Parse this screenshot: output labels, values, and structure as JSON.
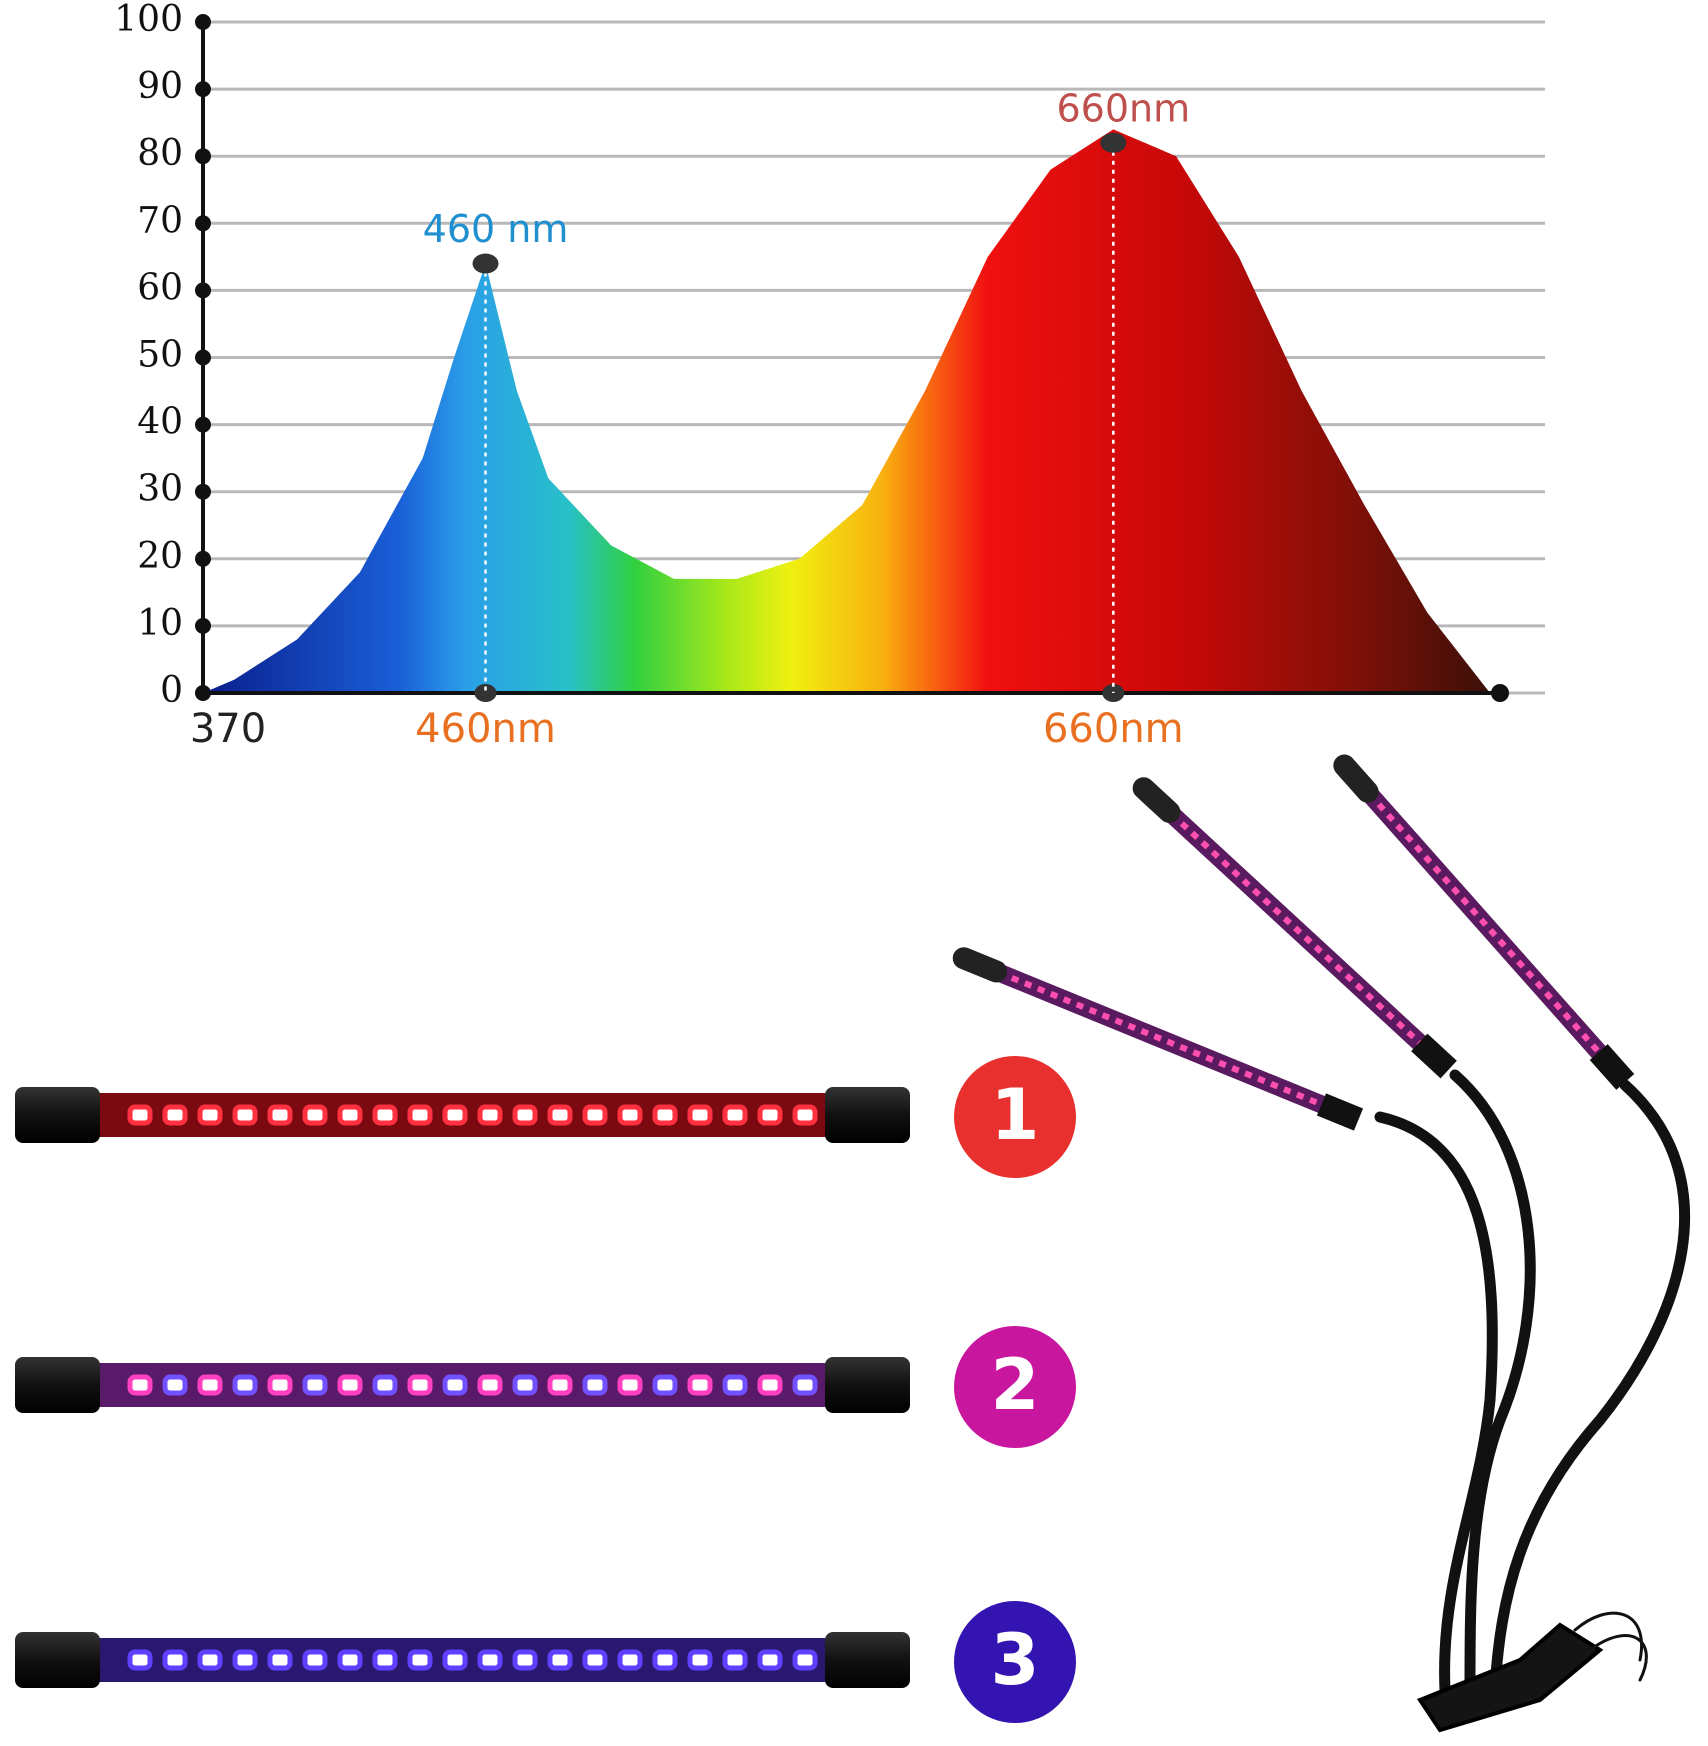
{
  "chart_data": {
    "type": "area",
    "x": [
      370,
      380,
      400,
      420,
      440,
      450,
      460,
      470,
      480,
      500,
      520,
      540,
      560,
      580,
      600,
      620,
      640,
      660,
      680,
      700,
      720,
      740,
      760,
      780
    ],
    "values": [
      0,
      2,
      8,
      18,
      35,
      50,
      64,
      45,
      32,
      22,
      17,
      17,
      20,
      28,
      45,
      65,
      78,
      84,
      80,
      65,
      45,
      28,
      12,
      0
    ],
    "xlim": [
      370,
      780
    ],
    "ylim": [
      0,
      100
    ],
    "yticks": [
      0,
      10,
      20,
      30,
      40,
      50,
      60,
      70,
      80,
      90,
      100
    ],
    "xticks": [
      370,
      {
        "value": 460,
        "label": "460nm"
      },
      {
        "value": 660,
        "label": "660nm"
      }
    ],
    "grid": true,
    "annotations": [
      {
        "text": "460 nm",
        "x": 460,
        "y": 64,
        "color": "#1f8fd0"
      },
      {
        "text": "660nm",
        "x": 660,
        "y": 82,
        "color": "#c0504d"
      }
    ]
  },
  "badges": [
    {
      "label": "1",
      "color": "#e8302f"
    },
    {
      "label": "2",
      "color": "#c8169e"
    },
    {
      "label": "3",
      "color": "#3414b0"
    }
  ]
}
